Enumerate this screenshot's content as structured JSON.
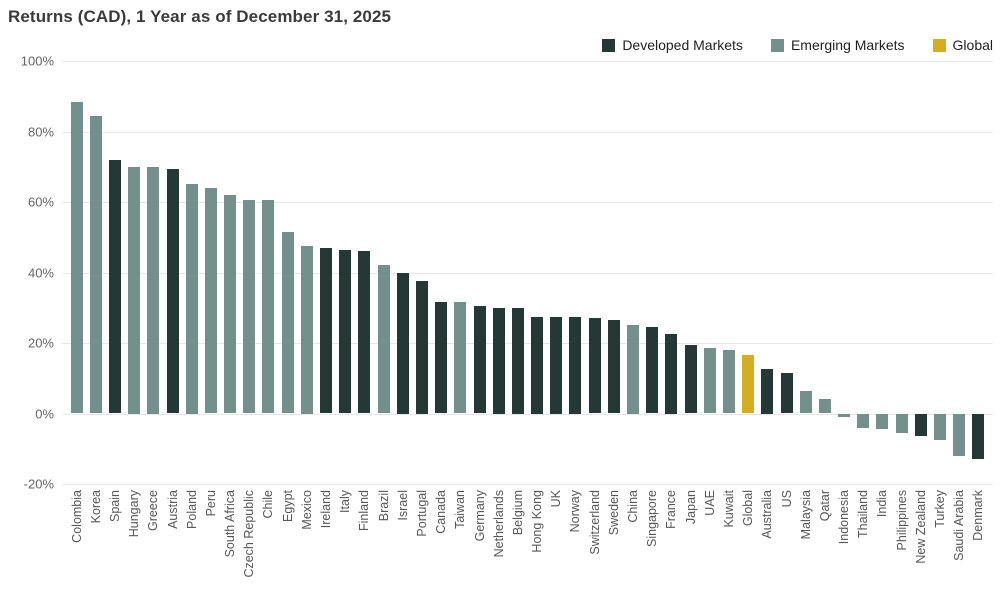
{
  "title": "Returns (CAD), 1 Year as of December 31, 2025",
  "legend": {
    "items": [
      {
        "label": "Developed Markets",
        "group": "developed"
      },
      {
        "label": "Emerging Markets",
        "group": "emerging"
      },
      {
        "label": "Global",
        "group": "global"
      }
    ]
  },
  "colors": {
    "developed": "#243936",
    "emerging": "#74908c",
    "global": "#d3ae20",
    "grid": "#e7e7e7",
    "axis_text": "#666666",
    "label_text": "#575757",
    "title_text": "#3b3b3b"
  },
  "chart_data": {
    "type": "bar",
    "title": "Returns (CAD), 1 Year as of December 31, 2025",
    "xlabel": "",
    "ylabel": "",
    "ylim": [
      -20,
      100
    ],
    "grid": true,
    "legend_position": "top-right",
    "ytick_values": [
      100,
      80,
      60,
      40,
      20,
      0,
      -20
    ],
    "ytick_labels": [
      "100%",
      "80%",
      "60%",
      "40%",
      "20%",
      "0%",
      "-20%"
    ],
    "categories": [
      "Colombia",
      "Korea",
      "Spain",
      "Hungary",
      "Greece",
      "Austria",
      "Poland",
      "Peru",
      "South Africa",
      "Czech Republic",
      "Chile",
      "Egypt",
      "Mexico",
      "Ireland",
      "Italy",
      "Finland",
      "Brazil",
      "Israel",
      "Portugal",
      "Canada",
      "Taiwan",
      "Germany",
      "Netherlands",
      "Belgium",
      "Hong Kong",
      "UK",
      "Norway",
      "Switzerland",
      "Sweden",
      "China",
      "Singapore",
      "France",
      "Japan",
      "UAE",
      "Kuwait",
      "Global",
      "Australia",
      "US",
      "Malaysia",
      "Qatar",
      "Indonesia",
      "Thailand",
      "India",
      "Philippines",
      "New Zealand",
      "Turkey",
      "Saudi Arabia",
      "Denmark"
    ],
    "values": [
      88.5,
      84.5,
      72,
      70,
      70,
      69.5,
      65,
      64,
      62,
      60.5,
      60.5,
      51.5,
      47.5,
      47,
      46.5,
      46,
      42,
      40,
      37.5,
      31.5,
      31.5,
      30.5,
      30,
      30,
      27.5,
      27.5,
      27.5,
      27,
      26.5,
      25,
      24.5,
      22.5,
      19.5,
      18.5,
      18,
      16.5,
      12.5,
      11.5,
      6.5,
      4,
      -1,
      -4,
      -4.5,
      -5.5,
      -6.5,
      -7.5,
      -12,
      -13
    ],
    "groups": [
      "emerging",
      "emerging",
      "developed",
      "emerging",
      "emerging",
      "developed",
      "emerging",
      "emerging",
      "emerging",
      "emerging",
      "emerging",
      "emerging",
      "emerging",
      "developed",
      "developed",
      "developed",
      "emerging",
      "developed",
      "developed",
      "developed",
      "emerging",
      "developed",
      "developed",
      "developed",
      "developed",
      "developed",
      "developed",
      "developed",
      "developed",
      "emerging",
      "developed",
      "developed",
      "developed",
      "emerging",
      "emerging",
      "global",
      "developed",
      "developed",
      "emerging",
      "emerging",
      "emerging",
      "emerging",
      "emerging",
      "emerging",
      "developed",
      "emerging",
      "emerging",
      "developed"
    ]
  }
}
